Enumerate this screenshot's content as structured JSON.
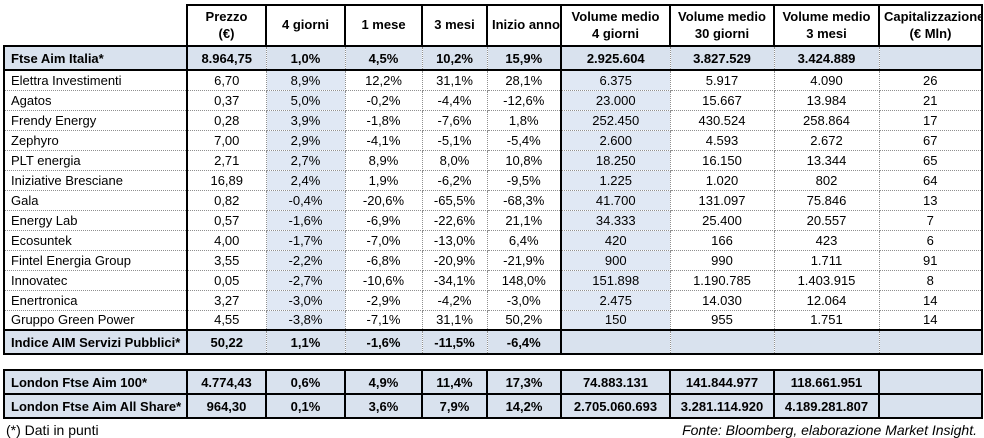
{
  "colors": {
    "index_row_bg": "#d9e2ee",
    "shaded_column_bg": "#e0e8f4",
    "border_solid": "#000000",
    "border_dotted": "#8f8f8f",
    "background": "#ffffff"
  },
  "header": {
    "cols": [
      {
        "l1": "",
        "l2": ""
      },
      {
        "l1": "Prezzo",
        "l2": "(€)"
      },
      {
        "l1": "4 giorni",
        "l2": ""
      },
      {
        "l1": "1 mese",
        "l2": ""
      },
      {
        "l1": "3 mesi",
        "l2": ""
      },
      {
        "l1": "Inizio anno",
        "l2": ""
      },
      {
        "l1": "Volume medio",
        "l2": "4 giorni"
      },
      {
        "l1": "Volume medio",
        "l2": "30 giorni"
      },
      {
        "l1": "Volume medio",
        "l2": "3 mesi"
      },
      {
        "l1": "Capitalizzazione",
        "l2": "(€ Mln)"
      }
    ]
  },
  "main_table": {
    "rows": [
      {
        "name": "Ftse Aim Italia*",
        "style": "index",
        "cells": [
          "8.964,75",
          "1,0%",
          "4,5%",
          "10,2%",
          "15,9%",
          "2.925.604",
          "3.827.529",
          "3.424.889",
          ""
        ]
      },
      {
        "name": "Elettra Investimenti",
        "style": "data",
        "cells": [
          "6,70",
          "8,9%",
          "12,2%",
          "31,1%",
          "28,1%",
          "6.375",
          "5.917",
          "4.090",
          "26"
        ]
      },
      {
        "name": "Agatos",
        "style": "data",
        "cells": [
          "0,37",
          "5,0%",
          "-0,2%",
          "-4,4%",
          "-12,6%",
          "23.000",
          "15.667",
          "13.984",
          "21"
        ]
      },
      {
        "name": "Frendy Energy",
        "style": "data",
        "cells": [
          "0,28",
          "3,9%",
          "-1,8%",
          "-7,6%",
          "1,8%",
          "252.450",
          "430.524",
          "258.864",
          "17"
        ]
      },
      {
        "name": "Zephyro",
        "style": "data",
        "cells": [
          "7,00",
          "2,9%",
          "-4,1%",
          "-5,1%",
          "-5,4%",
          "2.600",
          "4.593",
          "2.672",
          "67"
        ]
      },
      {
        "name": "PLT energia",
        "style": "data",
        "cells": [
          "2,71",
          "2,7%",
          "8,9%",
          "8,0%",
          "10,8%",
          "18.250",
          "16.150",
          "13.344",
          "65"
        ]
      },
      {
        "name": "Iniziative Bresciane",
        "style": "data",
        "cells": [
          "16,89",
          "2,4%",
          "1,9%",
          "-6,2%",
          "-9,5%",
          "1.225",
          "1.020",
          "802",
          "64"
        ]
      },
      {
        "name": "Gala",
        "style": "data",
        "cells": [
          "0,82",
          "-0,4%",
          "-20,6%",
          "-65,5%",
          "-68,3%",
          "41.700",
          "131.097",
          "75.846",
          "13"
        ]
      },
      {
        "name": "Energy Lab",
        "style": "data",
        "cells": [
          "0,57",
          "-1,6%",
          "-6,9%",
          "-22,6%",
          "21,1%",
          "34.333",
          "25.400",
          "20.557",
          "7"
        ]
      },
      {
        "name": "Ecosuntek",
        "style": "data",
        "cells": [
          "4,00",
          "-1,7%",
          "-7,0%",
          "-13,0%",
          "6,4%",
          "420",
          "166",
          "423",
          "6"
        ]
      },
      {
        "name": "Fintel Energia Group",
        "style": "data",
        "cells": [
          "3,55",
          "-2,2%",
          "-6,8%",
          "-20,9%",
          "-21,9%",
          "900",
          "990",
          "1.711",
          "91"
        ]
      },
      {
        "name": "Innovatec",
        "style": "data",
        "cells": [
          "0,05",
          "-2,7%",
          "-10,6%",
          "-34,1%",
          "148,0%",
          "151.898",
          "1.190.785",
          "1.403.915",
          "8"
        ]
      },
      {
        "name": "Enertronica",
        "style": "data",
        "cells": [
          "3,27",
          "-3,0%",
          "-2,9%",
          "-4,2%",
          "-3,0%",
          "2.475",
          "14.030",
          "12.064",
          "14"
        ]
      },
      {
        "name": "Gruppo Green Power",
        "style": "data",
        "cells": [
          "4,55",
          "-3,8%",
          "-7,1%",
          "31,1%",
          "50,2%",
          "150",
          "955",
          "1.751",
          "14"
        ]
      },
      {
        "name": "Indice AIM Servizi Pubblici*",
        "style": "index",
        "cells": [
          "50,22",
          "1,1%",
          "-1,6%",
          "-11,5%",
          "-6,4%",
          "",
          "",
          "",
          ""
        ]
      }
    ]
  },
  "london_table": {
    "rows": [
      {
        "name": "London Ftse Aim 100*",
        "style": "index",
        "cells": [
          "4.774,43",
          "0,6%",
          "4,9%",
          "11,4%",
          "17,3%",
          "74.883.131",
          "141.844.977",
          "118.661.951",
          ""
        ]
      },
      {
        "name": "London Ftse Aim All Share*",
        "style": "index",
        "cells": [
          "964,30",
          "0,1%",
          "3,6%",
          "7,9%",
          "14,2%",
          "2.705.060.693",
          "3.281.114.920",
          "4.189.281.807",
          ""
        ]
      }
    ]
  },
  "footer": {
    "note": "(*) Dati in punti",
    "source": "Fonte: Bloomberg, elaborazione Market Insight."
  }
}
